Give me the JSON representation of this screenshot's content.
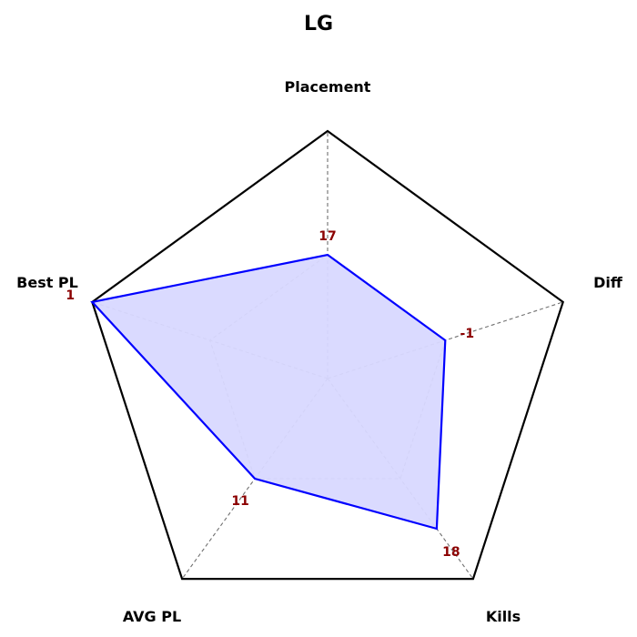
{
  "chart_data": {
    "type": "radar",
    "title": "LG",
    "axes": [
      "Placement",
      "Diff",
      "Kills",
      "AVG PL",
      "Best PL"
    ],
    "values": [
      17,
      -1,
      18,
      11,
      1
    ],
    "normalized": [
      0.5,
      0.5,
      0.75,
      0.5,
      1.0
    ],
    "inner_ring": 0.5,
    "grid": true,
    "colors": {
      "outline": "#000000",
      "grid": "#707070",
      "series_line": "#0000ff",
      "series_fill": "#d8d8ff",
      "value_label": "#8b0000"
    }
  }
}
